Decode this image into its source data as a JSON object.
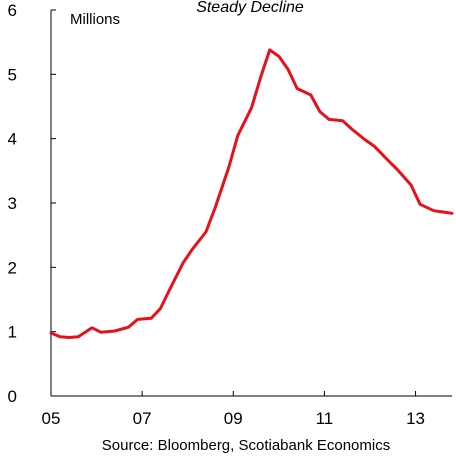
{
  "chart_data": {
    "type": "line",
    "title": "Steady Decline",
    "unit_label": "Millions",
    "source": "Source: Bloomberg, Scotiabank Economics",
    "xlim": [
      2005,
      2013.8
    ],
    "ylim": [
      0,
      6
    ],
    "x_ticks": [
      {
        "value": 2005,
        "label": "05"
      },
      {
        "value": 2007,
        "label": "07"
      },
      {
        "value": 2009,
        "label": "09"
      },
      {
        "value": 2011,
        "label": "11"
      },
      {
        "value": 2013,
        "label": "13"
      }
    ],
    "y_ticks": [
      {
        "value": 0,
        "label": "0"
      },
      {
        "value": 1,
        "label": "1"
      },
      {
        "value": 2,
        "label": "2"
      },
      {
        "value": 3,
        "label": "3"
      },
      {
        "value": 4,
        "label": "4"
      },
      {
        "value": 5,
        "label": "5"
      },
      {
        "value": 6,
        "label": "6"
      }
    ],
    "grid": false,
    "series": [
      {
        "color": "#e8101a",
        "x": [
          2005.0,
          2005.2,
          2005.4,
          2005.6,
          2005.9,
          2006.1,
          2006.4,
          2006.7,
          2006.9,
          2007.2,
          2007.4,
          2007.6,
          2007.9,
          2008.1,
          2008.4,
          2008.6,
          2008.9,
          2009.1,
          2009.4,
          2009.6,
          2009.8,
          2010.0,
          2010.2,
          2010.4,
          2010.7,
          2010.9,
          2011.1,
          2011.4,
          2011.6,
          2011.9,
          2012.1,
          2012.4,
          2012.6,
          2012.9,
          2013.1,
          2013.4,
          2013.6,
          2013.8
        ],
        "values": [
          0.98,
          0.92,
          0.91,
          0.92,
          1.06,
          0.99,
          1.01,
          1.07,
          1.19,
          1.21,
          1.36,
          1.65,
          2.07,
          2.28,
          2.55,
          2.92,
          3.55,
          4.05,
          4.48,
          4.95,
          5.38,
          5.28,
          5.08,
          4.78,
          4.68,
          4.42,
          4.3,
          4.28,
          4.15,
          3.98,
          3.88,
          3.66,
          3.52,
          3.28,
          2.98,
          2.88,
          2.86,
          2.84
        ]
      }
    ]
  }
}
